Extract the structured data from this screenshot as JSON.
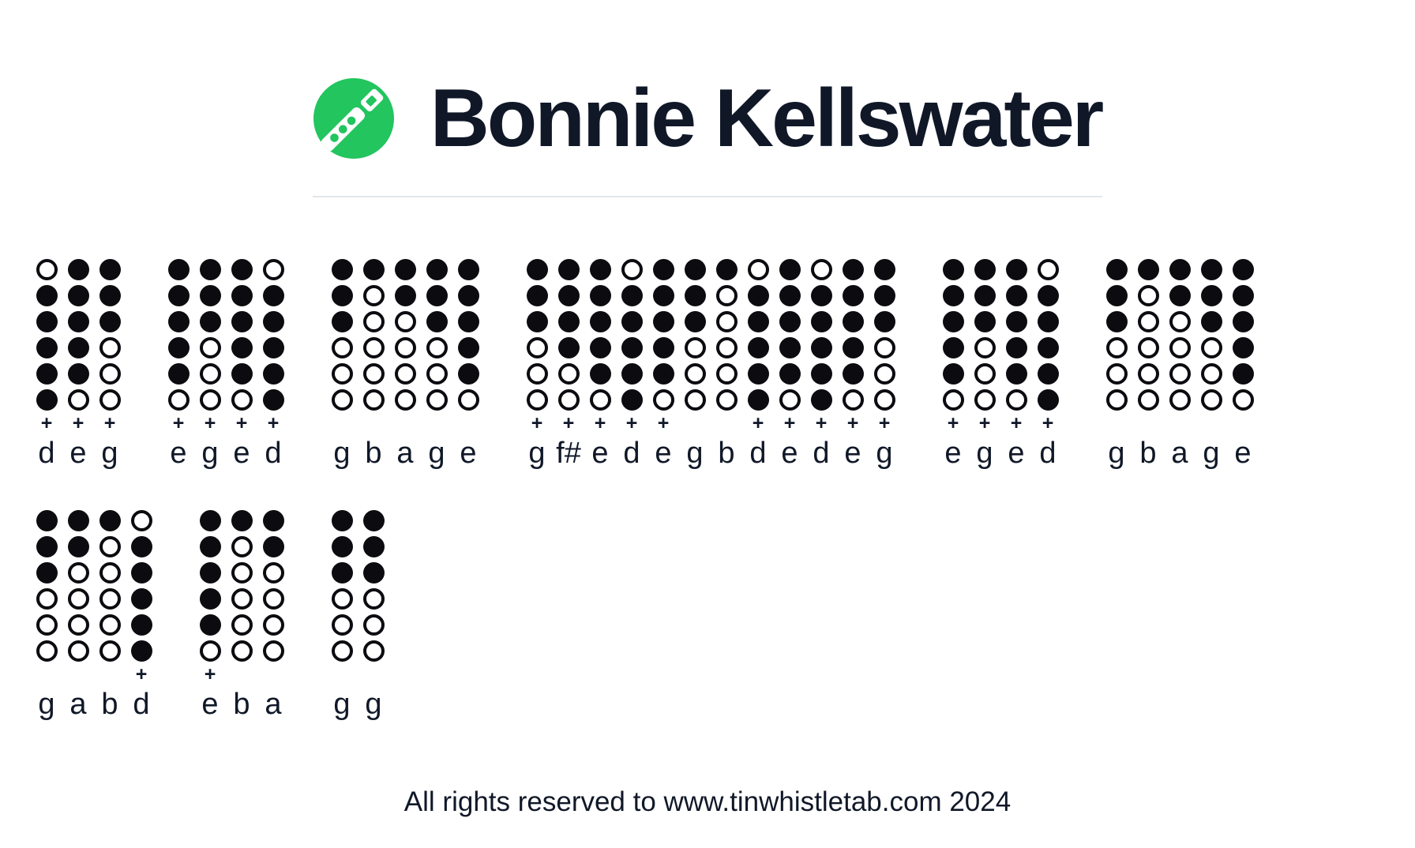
{
  "header": {
    "title": "Bonnie Kellswater"
  },
  "logo": {
    "icon": "tin-whistle-icon",
    "bg_color": "#22c55e",
    "whistle_color": "#ffffff"
  },
  "symbols": {
    "octave_plus": "+"
  },
  "colors": {
    "text": "#101828",
    "hole": "#0b0b10",
    "accent_green": "#22c55e",
    "divider": "#e2e6eb"
  },
  "tab_rows": [
    [
      {
        "notes": [
          {
            "label": "d",
            "plus": true,
            "holes": [
              0,
              1,
              1,
              1,
              1,
              1
            ]
          },
          {
            "label": "e",
            "plus": true,
            "holes": [
              1,
              1,
              1,
              1,
              1,
              0
            ]
          },
          {
            "label": "g",
            "plus": true,
            "holes": [
              1,
              1,
              1,
              0,
              0,
              0
            ]
          }
        ]
      },
      {
        "notes": [
          {
            "label": "e",
            "plus": true,
            "holes": [
              1,
              1,
              1,
              1,
              1,
              0
            ]
          },
          {
            "label": "g",
            "plus": true,
            "holes": [
              1,
              1,
              1,
              0,
              0,
              0
            ]
          },
          {
            "label": "e",
            "plus": true,
            "holes": [
              1,
              1,
              1,
              1,
              1,
              0
            ]
          },
          {
            "label": "d",
            "plus": true,
            "holes": [
              0,
              1,
              1,
              1,
              1,
              1
            ]
          }
        ]
      },
      {
        "notes": [
          {
            "label": "g",
            "plus": false,
            "holes": [
              1,
              1,
              1,
              0,
              0,
              0
            ]
          },
          {
            "label": "b",
            "plus": false,
            "holes": [
              1,
              0,
              0,
              0,
              0,
              0
            ]
          },
          {
            "label": "a",
            "plus": false,
            "holes": [
              1,
              1,
              0,
              0,
              0,
              0
            ]
          },
          {
            "label": "g",
            "plus": false,
            "holes": [
              1,
              1,
              1,
              0,
              0,
              0
            ]
          },
          {
            "label": "e",
            "plus": false,
            "holes": [
              1,
              1,
              1,
              1,
              1,
              0
            ]
          }
        ]
      },
      {
        "notes": [
          {
            "label": "g",
            "plus": true,
            "holes": [
              1,
              1,
              1,
              0,
              0,
              0
            ]
          },
          {
            "label": "f#",
            "plus": true,
            "holes": [
              1,
              1,
              1,
              1,
              0,
              0
            ]
          },
          {
            "label": "e",
            "plus": true,
            "holes": [
              1,
              1,
              1,
              1,
              1,
              0
            ]
          },
          {
            "label": "d",
            "plus": true,
            "holes": [
              0,
              1,
              1,
              1,
              1,
              1
            ]
          },
          {
            "label": "e",
            "plus": true,
            "holes": [
              1,
              1,
              1,
              1,
              1,
              0
            ]
          },
          {
            "label": "g",
            "plus": false,
            "holes": [
              1,
              1,
              1,
              0,
              0,
              0
            ]
          },
          {
            "label": "b",
            "plus": false,
            "holes": [
              1,
              0,
              0,
              0,
              0,
              0
            ]
          },
          {
            "label": "d",
            "plus": true,
            "holes": [
              0,
              1,
              1,
              1,
              1,
              1
            ]
          },
          {
            "label": "e",
            "plus": true,
            "holes": [
              1,
              1,
              1,
              1,
              1,
              0
            ]
          },
          {
            "label": "d",
            "plus": true,
            "holes": [
              0,
              1,
              1,
              1,
              1,
              1
            ]
          },
          {
            "label": "e",
            "plus": true,
            "holes": [
              1,
              1,
              1,
              1,
              1,
              0
            ]
          },
          {
            "label": "g",
            "plus": true,
            "holes": [
              1,
              1,
              1,
              0,
              0,
              0
            ]
          }
        ]
      },
      {
        "notes": [
          {
            "label": "e",
            "plus": true,
            "holes": [
              1,
              1,
              1,
              1,
              1,
              0
            ]
          },
          {
            "label": "g",
            "plus": true,
            "holes": [
              1,
              1,
              1,
              0,
              0,
              0
            ]
          },
          {
            "label": "e",
            "plus": true,
            "holes": [
              1,
              1,
              1,
              1,
              1,
              0
            ]
          },
          {
            "label": "d",
            "plus": true,
            "holes": [
              0,
              1,
              1,
              1,
              1,
              1
            ]
          }
        ]
      },
      {
        "notes": [
          {
            "label": "g",
            "plus": false,
            "holes": [
              1,
              1,
              1,
              0,
              0,
              0
            ]
          },
          {
            "label": "b",
            "plus": false,
            "holes": [
              1,
              0,
              0,
              0,
              0,
              0
            ]
          },
          {
            "label": "a",
            "plus": false,
            "holes": [
              1,
              1,
              0,
              0,
              0,
              0
            ]
          },
          {
            "label": "g",
            "plus": false,
            "holes": [
              1,
              1,
              1,
              0,
              0,
              0
            ]
          },
          {
            "label": "e",
            "plus": false,
            "holes": [
              1,
              1,
              1,
              1,
              1,
              0
            ]
          }
        ]
      }
    ],
    [
      {
        "notes": [
          {
            "label": "g",
            "plus": false,
            "holes": [
              1,
              1,
              1,
              0,
              0,
              0
            ]
          },
          {
            "label": "a",
            "plus": false,
            "holes": [
              1,
              1,
              0,
              0,
              0,
              0
            ]
          },
          {
            "label": "b",
            "plus": false,
            "holes": [
              1,
              0,
              0,
              0,
              0,
              0
            ]
          },
          {
            "label": "d",
            "plus": true,
            "holes": [
              0,
              1,
              1,
              1,
              1,
              1
            ]
          }
        ]
      },
      {
        "notes": [
          {
            "label": "e",
            "plus": true,
            "holes": [
              1,
              1,
              1,
              1,
              1,
              0
            ]
          },
          {
            "label": "b",
            "plus": false,
            "holes": [
              1,
              0,
              0,
              0,
              0,
              0
            ]
          },
          {
            "label": "a",
            "plus": false,
            "holes": [
              1,
              1,
              0,
              0,
              0,
              0
            ]
          }
        ]
      },
      {
        "notes": [
          {
            "label": "g",
            "plus": false,
            "holes": [
              1,
              1,
              1,
              0,
              0,
              0
            ]
          },
          {
            "label": "g",
            "plus": false,
            "holes": [
              1,
              1,
              1,
              0,
              0,
              0
            ]
          }
        ]
      }
    ]
  ],
  "footer": {
    "text": "All rights reserved to www.tinwhistletab.com 2024"
  }
}
